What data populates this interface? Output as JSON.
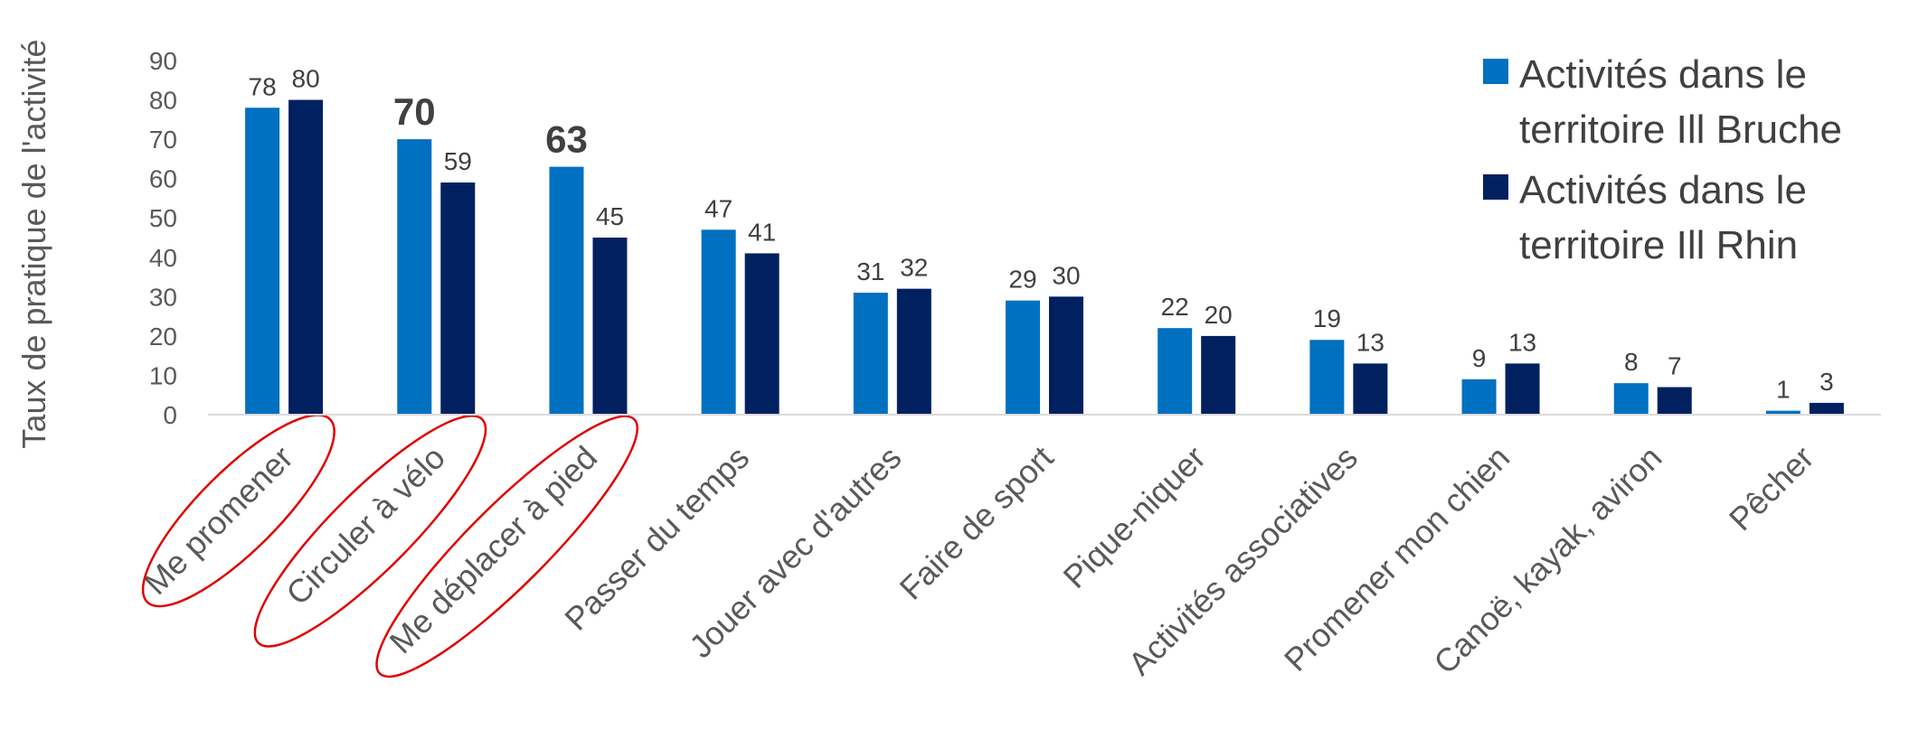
{
  "chart_data": {
    "type": "bar",
    "ylabel": "Taux de pratique de l'activité",
    "ylim": [
      0,
      90
    ],
    "yticks": [
      0,
      10,
      20,
      30,
      40,
      50,
      60,
      70,
      80,
      90
    ],
    "categories": [
      "Me promener",
      "Circuler à vélo",
      "Me déplacer à pied",
      "Passer du temps",
      "Jouer avec d'autres",
      "Faire de sport",
      "Pique-niquer",
      "Activités associatives",
      "Promener mon chien",
      "Canoë, kayak, aviron",
      "Pêcher"
    ],
    "series": [
      {
        "name": "Activités dans le territoire Ill Bruche",
        "color": "#0070C0",
        "values": [
          78,
          70,
          63,
          47,
          31,
          29,
          22,
          19,
          9,
          8,
          1
        ]
      },
      {
        "name": "Activités dans le territoire Ill Rhin",
        "color": "#002060",
        "values": [
          80,
          59,
          45,
          41,
          32,
          30,
          20,
          13,
          13,
          7,
          3
        ]
      }
    ],
    "emphasized_labels": [
      {
        "series": 0,
        "index": 1
      },
      {
        "series": 0,
        "index": 2
      }
    ],
    "circled_categories": [
      "Me promener",
      "Circuler à vélo",
      "Me déplacer à pied"
    ],
    "circle_color": "#E00000",
    "grid": false,
    "legend_position": "top-right"
  }
}
